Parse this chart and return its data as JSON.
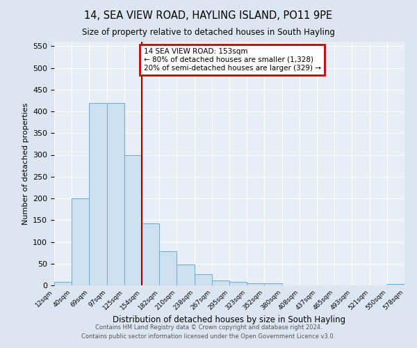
{
  "title": "14, SEA VIEW ROAD, HAYLING ISLAND, PO11 9PE",
  "subtitle": "Size of property relative to detached houses in South Hayling",
  "xlabel": "Distribution of detached houses by size in South Hayling",
  "ylabel": "Number of detached properties",
  "bin_labels": [
    "12sqm",
    "40sqm",
    "69sqm",
    "97sqm",
    "125sqm",
    "154sqm",
    "182sqm",
    "210sqm",
    "238sqm",
    "267sqm",
    "295sqm",
    "323sqm",
    "352sqm",
    "380sqm",
    "408sqm",
    "437sqm",
    "465sqm",
    "493sqm",
    "521sqm",
    "550sqm",
    "578sqm"
  ],
  "bar_values": [
    8,
    200,
    420,
    420,
    300,
    143,
    78,
    48,
    25,
    12,
    8,
    5,
    5,
    0,
    0,
    0,
    0,
    0,
    0,
    3,
    0
  ],
  "bar_color": "#cce0f0",
  "bar_edge_color": "#6aaad4",
  "vline_label_idx": 5,
  "vline_color": "#990000",
  "annotation_line1": "14 SEA VIEW ROAD: 153sqm",
  "annotation_line2": "← 80% of detached houses are smaller (1,328)",
  "annotation_line3": "20% of semi-detached houses are larger (329) →",
  "annotation_box_color": "#ffffff",
  "annotation_border_color": "#cc0000",
  "ylim": [
    0,
    560
  ],
  "yticks": [
    0,
    50,
    100,
    150,
    200,
    250,
    300,
    350,
    400,
    450,
    500,
    550
  ],
  "footer_line1": "Contains HM Land Registry data © Crown copyright and database right 2024.",
  "footer_line2": "Contains public sector information licensed under the Open Government Licence v3.0.",
  "bg_color": "#dde6f0",
  "plot_bg_color": "#e8eef6"
}
